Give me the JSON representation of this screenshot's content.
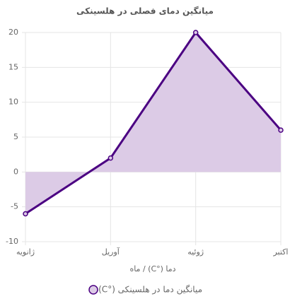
{
  "chart_data": {
    "type": "line",
    "title": "میانگین دمای فصلی در هلسینکی",
    "x_label": "دما (°C) / ماه",
    "categories": [
      "ژانویه",
      "آوریل",
      "ژوئیه",
      "اکتبر"
    ],
    "series": [
      {
        "name": "میانگین دما در هلسینکی (°C)",
        "color": "#4b0082",
        "fill": "#dccbe6",
        "values": [
          -6,
          2,
          20,
          6
        ]
      }
    ],
    "ylim": [
      -10,
      20
    ],
    "yticks": [
      -10,
      -5,
      0,
      5,
      10,
      15,
      20
    ],
    "grid": true,
    "legend": "bottom"
  }
}
